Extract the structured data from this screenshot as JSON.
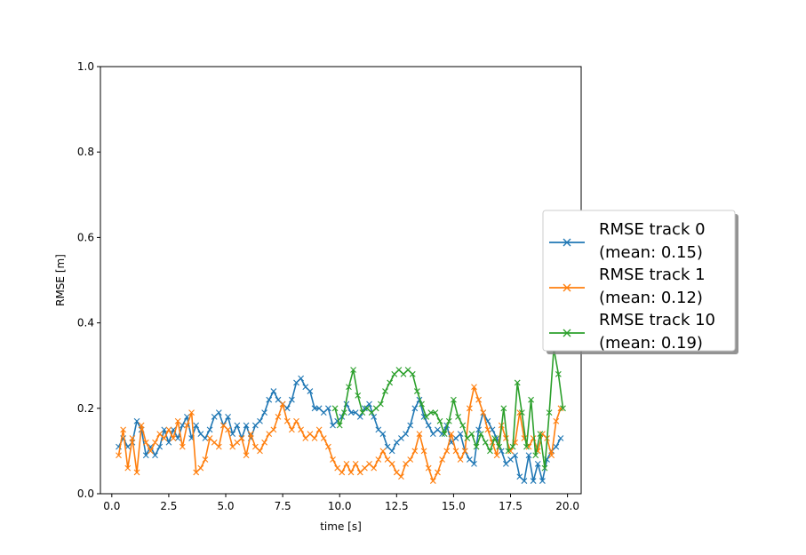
{
  "chart_data": {
    "type": "line",
    "xlabel": "time [s]",
    "ylabel": "RMSE [m]",
    "xlim": [
      -0.5,
      20.6
    ],
    "ylim": [
      0.0,
      1.0
    ],
    "x_ticks": [
      0.0,
      2.5,
      5.0,
      7.5,
      10.0,
      12.5,
      15.0,
      17.5,
      20.0
    ],
    "x_tick_labels": [
      "0.0",
      "2.5",
      "5.0",
      "7.5",
      "10.0",
      "12.5",
      "15.0",
      "17.5",
      "20.0"
    ],
    "y_ticks": [
      0.0,
      0.2,
      0.4,
      0.6,
      0.8,
      1.0
    ],
    "y_tick_labels": [
      "0.0",
      "0.2",
      "0.4",
      "0.6",
      "0.8",
      "1.0"
    ],
    "grid": false,
    "legend_position": "right",
    "marker": "x",
    "series": [
      {
        "name": "RMSE track 0",
        "mean_label": "(mean: 0.15)",
        "color": "#1f77b4",
        "points": [
          [
            0.3,
            0.11
          ],
          [
            0.5,
            0.13
          ],
          [
            0.7,
            0.11
          ],
          [
            0.9,
            0.12
          ],
          [
            1.1,
            0.17
          ],
          [
            1.3,
            0.15
          ],
          [
            1.5,
            0.09
          ],
          [
            1.7,
            0.11
          ],
          [
            1.9,
            0.09
          ],
          [
            2.1,
            0.11
          ],
          [
            2.3,
            0.15
          ],
          [
            2.5,
            0.12
          ],
          [
            2.7,
            0.15
          ],
          [
            2.9,
            0.13
          ],
          [
            3.1,
            0.16
          ],
          [
            3.3,
            0.18
          ],
          [
            3.5,
            0.13
          ],
          [
            3.7,
            0.16
          ],
          [
            3.9,
            0.14
          ],
          [
            4.1,
            0.13
          ],
          [
            4.3,
            0.15
          ],
          [
            4.5,
            0.18
          ],
          [
            4.7,
            0.19
          ],
          [
            4.9,
            0.16
          ],
          [
            5.1,
            0.18
          ],
          [
            5.3,
            0.14
          ],
          [
            5.5,
            0.16
          ],
          [
            5.7,
            0.13
          ],
          [
            5.9,
            0.16
          ],
          [
            6.1,
            0.13
          ],
          [
            6.3,
            0.16
          ],
          [
            6.5,
            0.17
          ],
          [
            6.7,
            0.19
          ],
          [
            6.9,
            0.22
          ],
          [
            7.1,
            0.24
          ],
          [
            7.3,
            0.22
          ],
          [
            7.5,
            0.21
          ],
          [
            7.7,
            0.2
          ],
          [
            7.9,
            0.22
          ],
          [
            8.1,
            0.26
          ],
          [
            8.3,
            0.27
          ],
          [
            8.5,
            0.25
          ],
          [
            8.7,
            0.24
          ],
          [
            8.9,
            0.2
          ],
          [
            9.1,
            0.2
          ],
          [
            9.3,
            0.19
          ],
          [
            9.5,
            0.2
          ],
          [
            9.7,
            0.16
          ],
          [
            9.9,
            0.17
          ],
          [
            10.1,
            0.18
          ],
          [
            10.3,
            0.21
          ],
          [
            10.5,
            0.19
          ],
          [
            10.7,
            0.19
          ],
          [
            10.9,
            0.18
          ],
          [
            11.1,
            0.2
          ],
          [
            11.3,
            0.21
          ],
          [
            11.5,
            0.18
          ],
          [
            11.7,
            0.15
          ],
          [
            11.9,
            0.14
          ],
          [
            12.1,
            0.11
          ],
          [
            12.3,
            0.1
          ],
          [
            12.5,
            0.12
          ],
          [
            12.7,
            0.13
          ],
          [
            12.9,
            0.14
          ],
          [
            13.1,
            0.16
          ],
          [
            13.3,
            0.2
          ],
          [
            13.5,
            0.22
          ],
          [
            13.7,
            0.18
          ],
          [
            13.9,
            0.16
          ],
          [
            14.1,
            0.14
          ],
          [
            14.3,
            0.15
          ],
          [
            14.5,
            0.14
          ],
          [
            14.7,
            0.16
          ],
          [
            14.9,
            0.12
          ],
          [
            15.1,
            0.13
          ],
          [
            15.3,
            0.14
          ],
          [
            15.5,
            0.1
          ],
          [
            15.7,
            0.08
          ],
          [
            15.9,
            0.07
          ],
          [
            16.1,
            0.15
          ],
          [
            16.3,
            0.19
          ],
          [
            16.5,
            0.17
          ],
          [
            16.7,
            0.15
          ],
          [
            16.9,
            0.13
          ],
          [
            17.1,
            0.1
          ],
          [
            17.3,
            0.07
          ],
          [
            17.5,
            0.08
          ],
          [
            17.7,
            0.09
          ],
          [
            17.9,
            0.04
          ],
          [
            18.1,
            0.03
          ],
          [
            18.3,
            0.09
          ],
          [
            18.5,
            0.03
          ],
          [
            18.7,
            0.07
          ],
          [
            18.9,
            0.03
          ],
          [
            19.1,
            0.08
          ],
          [
            19.3,
            0.1
          ],
          [
            19.5,
            0.11
          ],
          [
            19.7,
            0.13
          ]
        ]
      },
      {
        "name": "RMSE track 1",
        "mean_label": "(mean: 0.12)",
        "color": "#ff7f0e",
        "points": [
          [
            0.3,
            0.09
          ],
          [
            0.5,
            0.15
          ],
          [
            0.7,
            0.06
          ],
          [
            0.9,
            0.13
          ],
          [
            1.1,
            0.05
          ],
          [
            1.3,
            0.16
          ],
          [
            1.5,
            0.12
          ],
          [
            1.7,
            0.1
          ],
          [
            1.9,
            0.12
          ],
          [
            2.1,
            0.14
          ],
          [
            2.3,
            0.13
          ],
          [
            2.5,
            0.15
          ],
          [
            2.7,
            0.13
          ],
          [
            2.9,
            0.17
          ],
          [
            3.1,
            0.11
          ],
          [
            3.3,
            0.16
          ],
          [
            3.5,
            0.19
          ],
          [
            3.7,
            0.05
          ],
          [
            3.9,
            0.06
          ],
          [
            4.1,
            0.08
          ],
          [
            4.3,
            0.13
          ],
          [
            4.5,
            0.12
          ],
          [
            4.7,
            0.11
          ],
          [
            4.9,
            0.16
          ],
          [
            5.1,
            0.15
          ],
          [
            5.3,
            0.11
          ],
          [
            5.5,
            0.12
          ],
          [
            5.7,
            0.13
          ],
          [
            5.9,
            0.09
          ],
          [
            6.1,
            0.14
          ],
          [
            6.3,
            0.11
          ],
          [
            6.5,
            0.1
          ],
          [
            6.7,
            0.12
          ],
          [
            6.9,
            0.14
          ],
          [
            7.1,
            0.15
          ],
          [
            7.3,
            0.18
          ],
          [
            7.5,
            0.21
          ],
          [
            7.7,
            0.17
          ],
          [
            7.9,
            0.15
          ],
          [
            8.1,
            0.17
          ],
          [
            8.3,
            0.15
          ],
          [
            8.5,
            0.13
          ],
          [
            8.7,
            0.14
          ],
          [
            8.9,
            0.13
          ],
          [
            9.1,
            0.15
          ],
          [
            9.3,
            0.13
          ],
          [
            9.5,
            0.11
          ],
          [
            9.7,
            0.08
          ],
          [
            9.9,
            0.06
          ],
          [
            10.1,
            0.05
          ],
          [
            10.3,
            0.07
          ],
          [
            10.5,
            0.05
          ],
          [
            10.7,
            0.07
          ],
          [
            10.9,
            0.05
          ],
          [
            11.1,
            0.06
          ],
          [
            11.3,
            0.07
          ],
          [
            11.5,
            0.06
          ],
          [
            11.7,
            0.08
          ],
          [
            11.9,
            0.1
          ],
          [
            12.1,
            0.08
          ],
          [
            12.3,
            0.07
          ],
          [
            12.5,
            0.05
          ],
          [
            12.7,
            0.04
          ],
          [
            12.9,
            0.07
          ],
          [
            13.1,
            0.08
          ],
          [
            13.3,
            0.1
          ],
          [
            13.5,
            0.14
          ],
          [
            13.7,
            0.1
          ],
          [
            13.9,
            0.06
          ],
          [
            14.1,
            0.03
          ],
          [
            14.3,
            0.05
          ],
          [
            14.5,
            0.08
          ],
          [
            14.7,
            0.1
          ],
          [
            14.9,
            0.14
          ],
          [
            15.1,
            0.1
          ],
          [
            15.3,
            0.08
          ],
          [
            15.5,
            0.1
          ],
          [
            15.7,
            0.2
          ],
          [
            15.9,
            0.25
          ],
          [
            16.1,
            0.22
          ],
          [
            16.3,
            0.19
          ],
          [
            16.5,
            0.15
          ],
          [
            16.7,
            0.12
          ],
          [
            16.9,
            0.09
          ],
          [
            17.1,
            0.16
          ],
          [
            17.3,
            0.13
          ],
          [
            17.5,
            0.1
          ],
          [
            17.7,
            0.12
          ],
          [
            17.9,
            0.19
          ],
          [
            18.1,
            0.13
          ],
          [
            18.3,
            0.11
          ],
          [
            18.5,
            0.13
          ],
          [
            18.7,
            0.1
          ],
          [
            18.9,
            0.14
          ],
          [
            19.1,
            0.13
          ],
          [
            19.3,
            0.09
          ],
          [
            19.5,
            0.17
          ],
          [
            19.7,
            0.2
          ]
        ]
      },
      {
        "name": "RMSE track 10",
        "mean_label": "(mean: 0.19)",
        "color": "#2ca02c",
        "points": [
          [
            9.8,
            0.2
          ],
          [
            10.0,
            0.16
          ],
          [
            10.2,
            0.19
          ],
          [
            10.4,
            0.25
          ],
          [
            10.6,
            0.29
          ],
          [
            10.8,
            0.23
          ],
          [
            11.0,
            0.19
          ],
          [
            11.2,
            0.2
          ],
          [
            11.4,
            0.19
          ],
          [
            11.6,
            0.2
          ],
          [
            11.8,
            0.21
          ],
          [
            12.0,
            0.24
          ],
          [
            12.2,
            0.26
          ],
          [
            12.4,
            0.28
          ],
          [
            12.6,
            0.29
          ],
          [
            12.8,
            0.28
          ],
          [
            13.0,
            0.29
          ],
          [
            13.2,
            0.28
          ],
          [
            13.4,
            0.24
          ],
          [
            13.6,
            0.21
          ],
          [
            13.8,
            0.18
          ],
          [
            14.0,
            0.19
          ],
          [
            14.2,
            0.19
          ],
          [
            14.4,
            0.17
          ],
          [
            14.6,
            0.14
          ],
          [
            14.8,
            0.17
          ],
          [
            15.0,
            0.22
          ],
          [
            15.2,
            0.18
          ],
          [
            15.4,
            0.16
          ],
          [
            15.6,
            0.13
          ],
          [
            15.8,
            0.14
          ],
          [
            16.0,
            0.11
          ],
          [
            16.2,
            0.14
          ],
          [
            16.4,
            0.12
          ],
          [
            16.6,
            0.1
          ],
          [
            16.8,
            0.13
          ],
          [
            17.0,
            0.11
          ],
          [
            17.2,
            0.2
          ],
          [
            17.4,
            0.1
          ],
          [
            17.6,
            0.11
          ],
          [
            17.8,
            0.26
          ],
          [
            18.0,
            0.19
          ],
          [
            18.2,
            0.11
          ],
          [
            18.4,
            0.22
          ],
          [
            18.6,
            0.09
          ],
          [
            18.8,
            0.14
          ],
          [
            19.0,
            0.06
          ],
          [
            19.2,
            0.19
          ],
          [
            19.4,
            0.34
          ],
          [
            19.6,
            0.28
          ],
          [
            19.8,
            0.2
          ]
        ]
      }
    ]
  }
}
